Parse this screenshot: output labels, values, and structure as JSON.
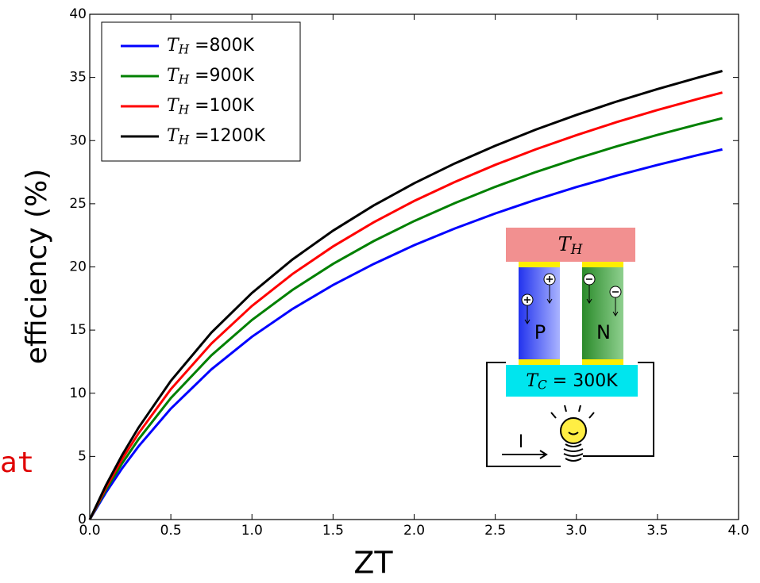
{
  "chart_data": {
    "type": "line",
    "x_label": "ZT",
    "y_label": "efficiency (%)",
    "x": [
      0,
      0.1,
      0.2,
      0.3,
      0.5,
      0.75,
      1.0,
      1.25,
      1.5,
      1.75,
      2.0,
      2.25,
      2.5,
      2.75,
      3.0,
      3.25,
      3.5,
      3.75,
      3.9
    ],
    "series": [
      {
        "name": "T_H =800K",
        "color": "#0000ff",
        "values": [
          0,
          2.14,
          4.06,
          5.78,
          8.78,
          11.89,
          14.47,
          16.67,
          18.57,
          20.23,
          21.72,
          23.04,
          24.23,
          25.32,
          26.32,
          27.23,
          28.07,
          28.86,
          29.3
        ]
      },
      {
        "name": "T_H =900K",
        "color": "#008000",
        "values": [
          0,
          2.35,
          4.45,
          6.34,
          9.62,
          13.0,
          15.8,
          18.18,
          20.24,
          22.04,
          23.63,
          25.05,
          26.34,
          27.51,
          28.57,
          29.55,
          30.45,
          31.29,
          31.77
        ]
      },
      {
        "name": "T_H =100K",
        "color": "#ff0000",
        "values": [
          0,
          2.53,
          4.79,
          6.81,
          10.32,
          13.93,
          16.91,
          19.44,
          21.62,
          23.53,
          25.22,
          26.72,
          28.08,
          29.31,
          30.43,
          31.47,
          32.42,
          33.3,
          33.8
        ]
      },
      {
        "name": "T_H =1200K",
        "color": "#000000",
        "values": [
          0,
          2.71,
          5.11,
          7.26,
          10.98,
          14.8,
          17.94,
          20.59,
          22.87,
          24.86,
          26.62,
          28.19,
          29.59,
          30.87,
          32.03,
          33.1,
          34.08,
          34.99,
          35.51
        ]
      }
    ],
    "xlim": [
      0,
      4
    ],
    "xticks": [
      {
        "value": 0,
        "label": "0.0"
      },
      0.5,
      {
        "value": 1,
        "label": "1.0"
      },
      1.5,
      {
        "value": 2,
        "label": "2.0"
      },
      2.5,
      {
        "value": 3,
        "label": "3.0"
      },
      3.5,
      {
        "value": 4,
        "label": "4.0"
      }
    ],
    "ylim": [
      0,
      40
    ],
    "yticks": [
      0,
      5,
      10,
      15,
      20,
      25,
      30,
      35,
      40
    ],
    "grid": false,
    "legend": "upper left",
    "inset": {
      "hot": "T_H",
      "p": "P",
      "n": "N",
      "cold": "T_C = 300K",
      "current": "I"
    },
    "background_text": "at"
  }
}
